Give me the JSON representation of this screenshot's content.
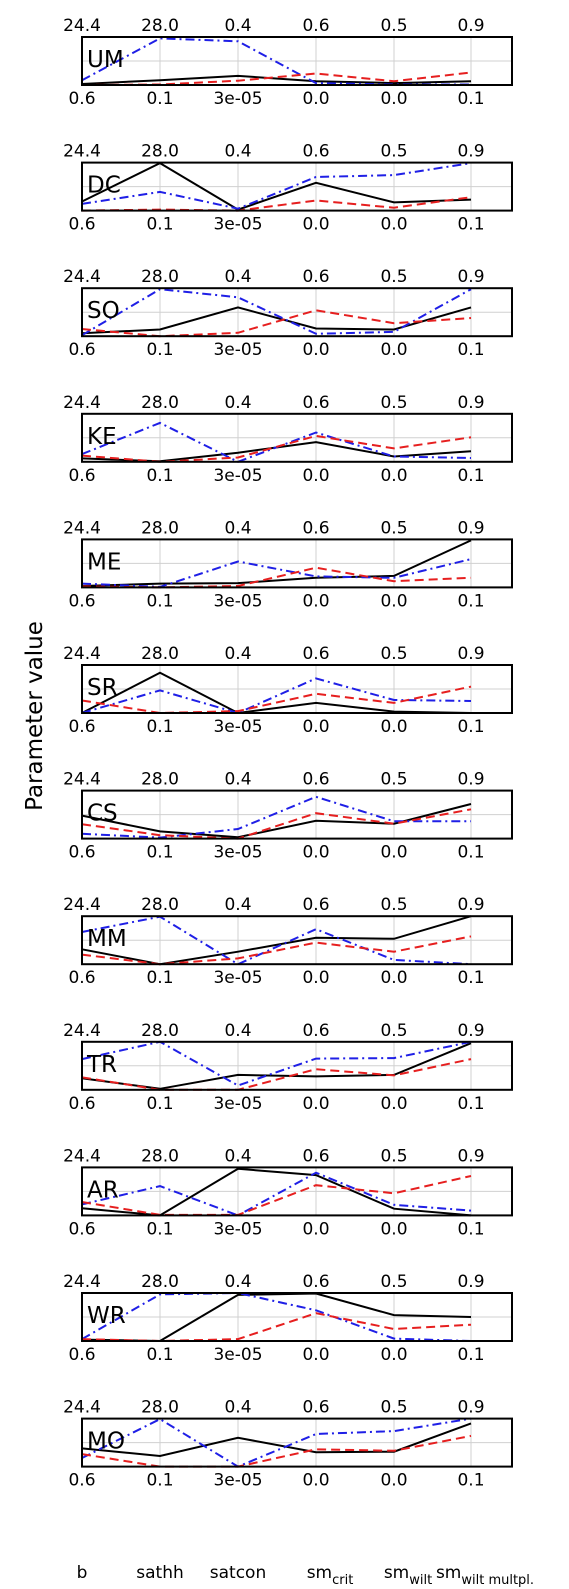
{
  "chart_data": {
    "type": "line",
    "ylabel": "Parameter value",
    "parameters": [
      {
        "name": "b",
        "sub": "",
        "top_tick": "24.4",
        "bottom_tick": "0.6"
      },
      {
        "name": "sathh",
        "sub": "",
        "top_tick": "28.0",
        "bottom_tick": "0.1"
      },
      {
        "name": "satcon",
        "sub": "",
        "top_tick": "0.4",
        "bottom_tick": "3e-05"
      },
      {
        "name": "sm",
        "sub": "crit",
        "top_tick": "0.6",
        "bottom_tick": "0.0"
      },
      {
        "name": "sm",
        "sub": "wilt",
        "top_tick": "0.5",
        "bottom_tick": "0.0"
      },
      {
        "name": "sm",
        "sub": "wilt multpl.",
        "top_tick": "0.9",
        "bottom_tick": "0.1"
      }
    ],
    "ylim": [
      0,
      1
    ],
    "grid": true,
    "series_styles": [
      {
        "color": "#000000",
        "dash": "solid"
      },
      {
        "color": "#1f1fe6",
        "dash": "dashdot"
      },
      {
        "color": "#e61f1f",
        "dash": "dashed"
      }
    ],
    "panels": [
      {
        "label": "UM",
        "series": [
          {
            "values": [
              0.02,
              0.1,
              0.19,
              0.08,
              0.04,
              0.08
            ]
          },
          {
            "values": [
              0.1,
              0.97,
              0.91,
              0.04,
              0.01,
              0.01
            ]
          },
          {
            "values": [
              0.0,
              0.01,
              0.09,
              0.24,
              0.08,
              0.26
            ]
          }
        ]
      },
      {
        "label": "DC",
        "series": [
          {
            "values": [
              0.19,
              0.99,
              0.02,
              0.58,
              0.17,
              0.23
            ]
          },
          {
            "values": [
              0.14,
              0.39,
              0.04,
              0.7,
              0.74,
              0.99
            ]
          },
          {
            "values": [
              0.0,
              0.02,
              0.0,
              0.21,
              0.06,
              0.28
            ]
          }
        ]
      },
      {
        "label": "SO",
        "series": [
          {
            "values": [
              0.06,
              0.14,
              0.6,
              0.16,
              0.14,
              0.6
            ]
          },
          {
            "values": [
              0.02,
              0.98,
              0.81,
              0.05,
              0.09,
              0.98
            ]
          },
          {
            "values": [
              0.15,
              0.0,
              0.07,
              0.54,
              0.27,
              0.38
            ]
          }
        ]
      },
      {
        "label": "KE",
        "series": [
          {
            "values": [
              0.07,
              0.01,
              0.19,
              0.41,
              0.11,
              0.22
            ]
          },
          {
            "values": [
              0.16,
              0.81,
              0.0,
              0.61,
              0.11,
              0.08
            ]
          },
          {
            "values": [
              0.13,
              0.0,
              0.09,
              0.54,
              0.28,
              0.51
            ]
          }
        ]
      },
      {
        "label": "ME",
        "series": [
          {
            "values": [
              0.03,
              0.08,
              0.09,
              0.2,
              0.24,
              0.98
            ]
          },
          {
            "values": [
              0.08,
              0.01,
              0.54,
              0.23,
              0.2,
              0.59
            ]
          },
          {
            "values": [
              0.02,
              0.0,
              0.03,
              0.41,
              0.13,
              0.2
            ]
          }
        ]
      },
      {
        "label": "SR",
        "series": [
          {
            "values": [
              0.0,
              0.84,
              0.0,
              0.21,
              0.03,
              0.0
            ]
          },
          {
            "values": [
              0.0,
              0.47,
              0.0,
              0.72,
              0.27,
              0.25
            ]
          },
          {
            "values": [
              0.26,
              0.0,
              0.04,
              0.4,
              0.21,
              0.55
            ]
          }
        ]
      },
      {
        "label": "CS",
        "series": [
          {
            "values": [
              0.48,
              0.15,
              0.03,
              0.37,
              0.31,
              0.72
            ]
          },
          {
            "values": [
              0.1,
              0.02,
              0.2,
              0.87,
              0.36,
              0.36
            ]
          },
          {
            "values": [
              0.3,
              0.07,
              0.0,
              0.53,
              0.31,
              0.61
            ]
          }
        ]
      },
      {
        "label": "MM",
        "series": [
          {
            "values": [
              0.31,
              0.0,
              0.26,
              0.55,
              0.53,
              1.0
            ]
          },
          {
            "values": [
              0.67,
              0.99,
              0.0,
              0.73,
              0.09,
              0.0
            ]
          },
          {
            "values": [
              0.2,
              0.0,
              0.12,
              0.45,
              0.26,
              0.58
            ]
          }
        ]
      },
      {
        "label": "TR",
        "series": [
          {
            "values": [
              0.24,
              0.02,
              0.31,
              0.28,
              0.31,
              0.97
            ]
          },
          {
            "values": [
              0.64,
              1.0,
              0.09,
              0.65,
              0.66,
              1.0
            ]
          },
          {
            "values": [
              0.26,
              0.0,
              0.0,
              0.43,
              0.3,
              0.64
            ]
          }
        ]
      },
      {
        "label": "AR",
        "series": [
          {
            "values": [
              0.15,
              0.0,
              0.97,
              0.84,
              0.14,
              0.0
            ]
          },
          {
            "values": [
              0.23,
              0.61,
              0.0,
              0.89,
              0.22,
              0.1
            ]
          },
          {
            "values": [
              0.28,
              0.01,
              0.01,
              0.63,
              0.46,
              0.82
            ]
          }
        ]
      },
      {
        "label": "WR",
        "series": [
          {
            "values": [
              0.03,
              0.0,
              0.96,
              0.99,
              0.54,
              0.5
            ]
          },
          {
            "values": [
              0.04,
              0.97,
              1.0,
              0.64,
              0.05,
              0.0
            ]
          },
          {
            "values": [
              0.04,
              0.0,
              0.04,
              0.58,
              0.25,
              0.34
            ]
          }
        ]
      },
      {
        "label": "MO",
        "series": [
          {
            "values": [
              0.38,
              0.22,
              0.6,
              0.3,
              0.31,
              0.9
            ]
          },
          {
            "values": [
              0.18,
              0.99,
              0.0,
              0.68,
              0.74,
              1.0
            ]
          },
          {
            "values": [
              0.26,
              0.0,
              0.0,
              0.36,
              0.33,
              0.64
            ]
          }
        ]
      }
    ]
  }
}
